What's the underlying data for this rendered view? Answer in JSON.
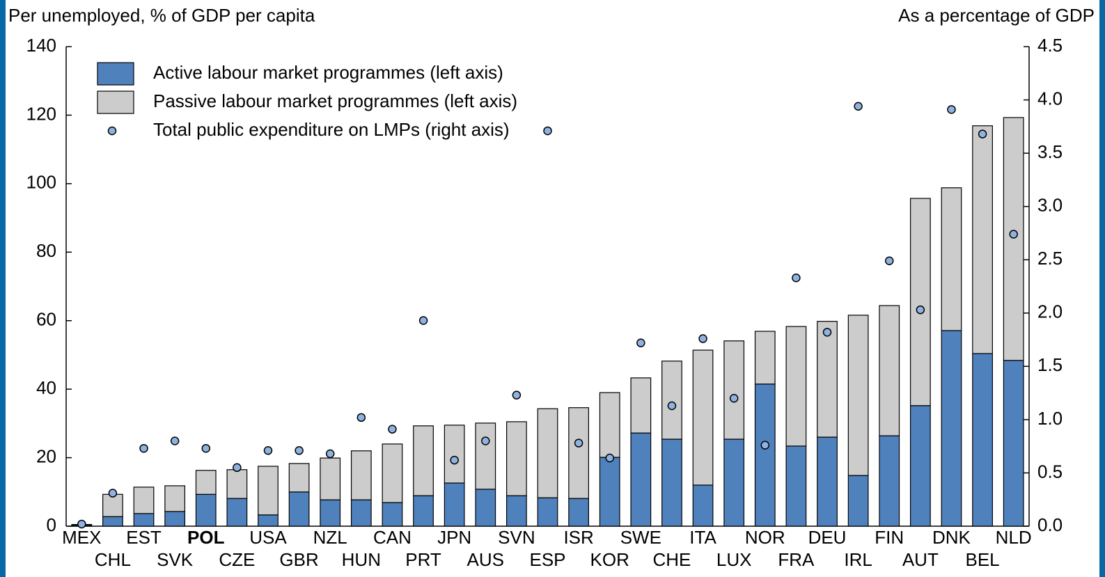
{
  "chart_data": {
    "type": "bar",
    "y_label": "Per unemployed, % of GDP per capita",
    "y2_label": "As a percentage of GDP",
    "categories": [
      "MEX",
      "CHL",
      "EST",
      "SVK",
      "POL",
      "CZE",
      "USA",
      "GBR",
      "NZL",
      "HUN",
      "CAN",
      "PRT",
      "JPN",
      "AUS",
      "SVN",
      "ESP",
      "ISR",
      "KOR",
      "SWE",
      "CHE",
      "ITA",
      "LUX",
      "NOR",
      "FRA",
      "DEU",
      "IRL",
      "FIN",
      "AUT",
      "DNK",
      "BEL",
      "NLD"
    ],
    "highlight": "POL",
    "stacked": true,
    "series": [
      {
        "name": "Active labour market programmes (left axis)",
        "color": "#4f81bd",
        "type": "bar",
        "values": [
          0.3,
          2.8,
          3.7,
          4.3,
          9.3,
          8.1,
          3.3,
          10.0,
          7.7,
          7.7,
          6.9,
          8.9,
          12.6,
          10.8,
          8.9,
          8.3,
          8.1,
          20.1,
          27.2,
          25.4,
          12.0,
          25.4,
          41.5,
          23.4,
          26.0,
          14.8,
          26.4,
          35.2,
          57.1,
          50.4,
          48.4
        ]
      },
      {
        "name": "Passive labour market programmes (left axis)",
        "color": "#cccccc",
        "type": "bar",
        "values": [
          0.2,
          6.5,
          7.7,
          7.5,
          7.0,
          8.4,
          14.2,
          8.3,
          12.2,
          14.3,
          17.1,
          20.4,
          16.9,
          19.3,
          21.6,
          26.0,
          26.5,
          18.9,
          16.1,
          22.8,
          39.4,
          28.7,
          15.4,
          34.9,
          33.8,
          46.8,
          38.0,
          60.5,
          41.7,
          66.5,
          70.9
        ]
      },
      {
        "name": "Total public expenditure on LMPs (right axis)",
        "color": "#8fb3e0",
        "type": "scatter",
        "axis": "y2",
        "values": [
          0.02,
          0.31,
          0.73,
          0.8,
          0.73,
          0.55,
          0.71,
          0.71,
          0.68,
          1.02,
          0.91,
          1.93,
          0.62,
          0.8,
          1.23,
          3.71,
          0.78,
          0.64,
          1.72,
          1.13,
          1.76,
          1.2,
          0.76,
          2.33,
          1.82,
          3.94,
          2.49,
          2.03,
          3.91,
          3.68,
          2.74
        ]
      }
    ],
    "ylim": [
      0,
      140
    ],
    "yticks": [
      0,
      20,
      40,
      60,
      80,
      100,
      120,
      140
    ],
    "y2lim": [
      0,
      4.5
    ],
    "y2ticks": [
      {
        "value": 0,
        "label": "0.0"
      },
      0.5,
      {
        "value": 1,
        "label": "1.0"
      },
      1.5,
      {
        "value": 2,
        "label": "2.0"
      },
      2.5,
      {
        "value": 3,
        "label": "3.0"
      },
      3.5,
      {
        "value": 4,
        "label": "4.0"
      },
      4.5
    ],
    "legend": "upper left"
  }
}
